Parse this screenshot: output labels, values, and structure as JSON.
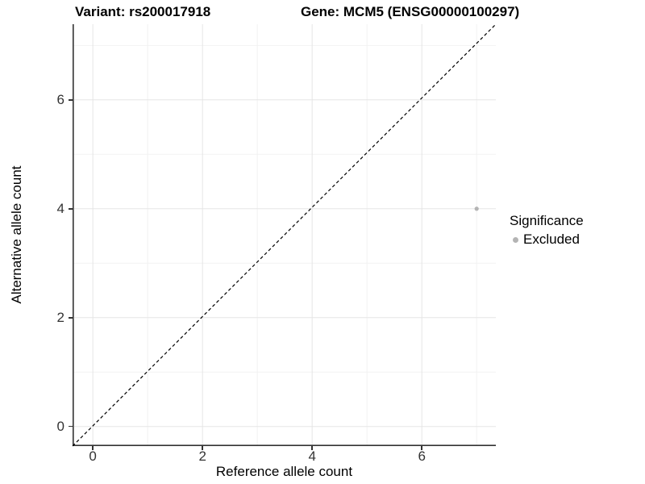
{
  "chart_data": {
    "type": "scatter",
    "titles": {
      "left": "Variant: rs200017918",
      "right": "Gene: MCM5 (ENSG00000100297)"
    },
    "xlabel": "Reference allele count",
    "ylabel": "Alternative allele count",
    "x_ticks": [
      0,
      2,
      4,
      6
    ],
    "x_minor_ticks": [
      1,
      3,
      5,
      7
    ],
    "y_ticks": [
      0,
      2,
      4,
      6
    ],
    "y_minor_ticks": [
      1,
      3,
      5,
      7
    ],
    "xlim": [
      -0.37,
      7.35
    ],
    "ylim": [
      -0.36,
      7.39
    ],
    "grid": "major+minor",
    "legend": {
      "title": "Significance",
      "position": "right",
      "items": [
        {
          "label": "Excluded",
          "color": "#b4b4b4"
        }
      ]
    },
    "series": [
      {
        "name": "Excluded",
        "color": "#b4b4b4",
        "point_radius": 2.6,
        "points": [
          {
            "x": 7,
            "y": 4
          }
        ]
      }
    ],
    "reference_line": {
      "kind": "identity y=x",
      "style": "dashed",
      "color": "#000000",
      "from": [
        -0.37,
        -0.36
      ],
      "to": [
        7.35,
        7.39
      ]
    }
  },
  "colors": {
    "background": "#ffffff",
    "grid_major": "#e5e5e5",
    "grid_minor": "#f2f2f2",
    "axis_line": "#333333",
    "tick_label": "#333333",
    "title_text": "#000000"
  }
}
